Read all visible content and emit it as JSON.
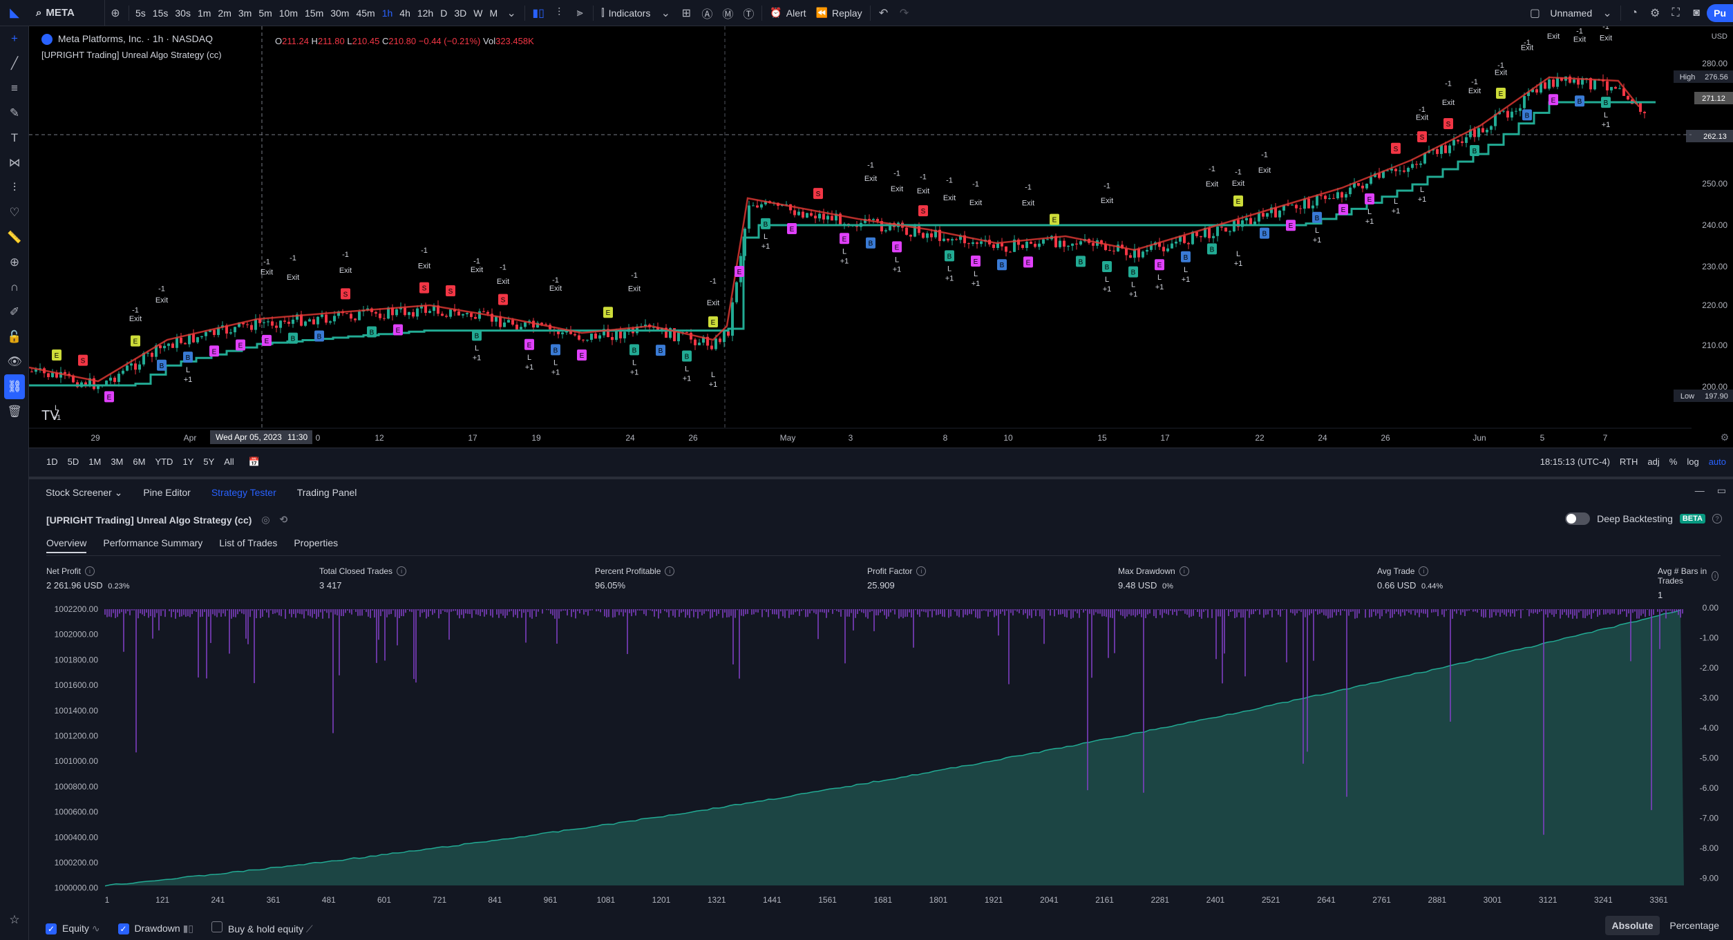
{
  "toolbar": {
    "symbol": "META",
    "intervals": [
      "5s",
      "15s",
      "30s",
      "1m",
      "2m",
      "3m",
      "5m",
      "10m",
      "15m",
      "30m",
      "45m",
      "1h",
      "4h",
      "12h",
      "D",
      "3D",
      "W",
      "M"
    ],
    "active_interval": "1h",
    "indicators_label": "Indicators",
    "alert_label": "Alert",
    "replay_label": "Replay",
    "layout_name": "Unnamed",
    "publish_label": "Pu"
  },
  "chart": {
    "title": "Meta Platforms, Inc. · 1h · NASDAQ",
    "strategy_legend": "[UPRIGHT Trading] Unreal Algo Strategy (cc)",
    "ohlc": {
      "o": "211.24",
      "h": "211.80",
      "l": "210.45",
      "c": "210.80",
      "chg": "−0.44 (−0.21%)",
      "vol": "323.458K"
    },
    "currency": "USD",
    "price_ticks": [
      "280.00",
      "250.00",
      "240.00",
      "230.00",
      "220.00",
      "210.00",
      "200.00"
    ],
    "price_high_label": "High",
    "price_high": "276.56",
    "price_low_label": "Low",
    "price_low": "197.90",
    "price_last": "271.12",
    "price_cursor": "262.13",
    "time_ticks": [
      "29",
      "Apr",
      "0",
      "12",
      "17",
      "19",
      "24",
      "26",
      "May",
      "3",
      "8",
      "10",
      "15",
      "17",
      "22",
      "24",
      "26",
      "Jun",
      "5",
      "7"
    ],
    "time_cursor": "Wed Apr 05, 2023",
    "time_cursor_hour": "11:30",
    "marker_exit": "Exit",
    "marker_b": "B",
    "marker_s": "S",
    "marker_l": "L",
    "marker_e": "E",
    "marker_plus": "+1",
    "marker_minus": "-1"
  },
  "periodbar": {
    "ranges": [
      "1D",
      "5D",
      "1M",
      "3M",
      "6M",
      "YTD",
      "1Y",
      "5Y",
      "All"
    ],
    "clock": "18:15:13 (UTC-4)",
    "session": "RTH",
    "opts": [
      "adj",
      "%",
      "log",
      "auto"
    ]
  },
  "panel": {
    "tabs": [
      "Stock Screener",
      "Pine Editor",
      "Strategy Tester",
      "Trading Panel"
    ],
    "active_tab": "Strategy Tester",
    "strategy_title": "[UPRIGHT Trading] Unreal Algo Strategy (cc)",
    "deep_backtesting": "Deep Backtesting",
    "beta": "BETA",
    "subtabs": [
      "Overview",
      "Performance Summary",
      "List of Trades",
      "Properties"
    ],
    "metrics": [
      {
        "label": "Net Profit",
        "value": "2 261.96 USD",
        "sub": "0.23%",
        "color": "green"
      },
      {
        "label": "Total Closed Trades",
        "value": "3 417",
        "sub": "",
        "color": "plain"
      },
      {
        "label": "Percent Profitable",
        "value": "96.05%",
        "sub": "",
        "color": "green"
      },
      {
        "label": "Profit Factor",
        "value": "25.909",
        "sub": "",
        "color": "green"
      },
      {
        "label": "Max Drawdown",
        "value": "9.48 USD",
        "sub": "0%",
        "color": "red"
      },
      {
        "label": "Avg Trade",
        "value": "0.66 USD",
        "sub": "0.44%",
        "color": "green"
      },
      {
        "label": "Avg # Bars in Trades",
        "value": "1",
        "sub": "",
        "color": "plain"
      }
    ],
    "equity_left_ticks": [
      "1002200.00",
      "1002000.00",
      "1001800.00",
      "1001600.00",
      "1001400.00",
      "1001200.00",
      "1001000.00",
      "1000800.00",
      "1000600.00",
      "1000400.00",
      "1000200.00",
      "1000000.00"
    ],
    "equity_right_ticks": [
      "0.00",
      "-1.00",
      "-2.00",
      "-3.00",
      "-4.00",
      "-5.00",
      "-6.00",
      "-7.00",
      "-8.00",
      "-9.00"
    ],
    "equity_x_ticks": [
      "1",
      "121",
      "241",
      "361",
      "481",
      "601",
      "721",
      "841",
      "961",
      "1081",
      "1201",
      "1321",
      "1441",
      "1561",
      "1681",
      "1801",
      "1921",
      "2041",
      "2161",
      "2281",
      "2401",
      "2521",
      "2641",
      "2761",
      "2881",
      "3001",
      "3121",
      "3241",
      "3361"
    ],
    "footer": {
      "equity": "Equity",
      "drawdown": "Drawdown",
      "buyhold": "Buy & hold equity"
    },
    "modes": [
      "Absolute",
      "Percentage"
    ]
  },
  "colors": {
    "accent": "#2962ff",
    "up": "#22ab94",
    "down": "#f23645",
    "equity_fill": "#1e4d4a",
    "drawdown": "#7e3fc2"
  }
}
